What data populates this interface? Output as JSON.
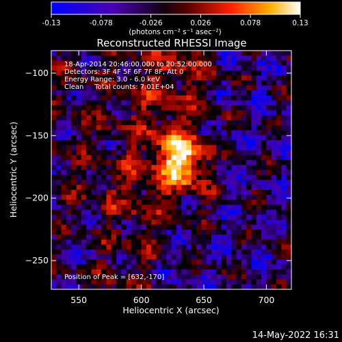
{
  "colorbar": {
    "ticks": [
      "-0.13",
      "-0.078",
      "-0.026",
      "0.026",
      "0.078",
      "0.13"
    ],
    "tick_values": [
      -0.13,
      -0.078,
      -0.026,
      0.026,
      0.078,
      0.13
    ],
    "range": [
      -0.13,
      0.13
    ],
    "units_label": "(photons cm⁻² s⁻¹ asec⁻²)"
  },
  "title": "Reconstructed RHESSI Image",
  "annotations": {
    "time": "18-Apr-2014 20:46:00.000 to 20:52:00.000",
    "detectors": "Detectors: 3F 4F 5F 6F 7F 8F, Att 0",
    "energy": "Energy Range: 3.0 - 6.0 keV",
    "clean": "Clean     Total counts: 7.01E+04",
    "peak": "Position of Peak = [632,-170]"
  },
  "chart_data": {
    "type": "heatmap",
    "title": "Reconstructed RHESSI Image",
    "xlabel": "Heliocentric X (arcsec)",
    "ylabel": "Heliocentric Y (arcsec)",
    "xlim": [
      528,
      720
    ],
    "ylim": [
      -273,
      -82
    ],
    "x_ticks": [
      550,
      600,
      650,
      700
    ],
    "y_ticks": [
      -100,
      -150,
      -200,
      -250
    ],
    "x_tick_labels": [
      "550",
      "600",
      "650",
      "700"
    ],
    "y_tick_labels": [
      "−100",
      "−150",
      "−200",
      "−250"
    ],
    "peak": {
      "x": 632,
      "y": -170,
      "value": 0.13
    },
    "colormap": [
      "#0000ff",
      "#4400aa",
      "#000000",
      "#8a0000",
      "#ff2a00",
      "#ffb400",
      "#ffffff"
    ]
  },
  "timestamp": "14-May-2022 16:31"
}
